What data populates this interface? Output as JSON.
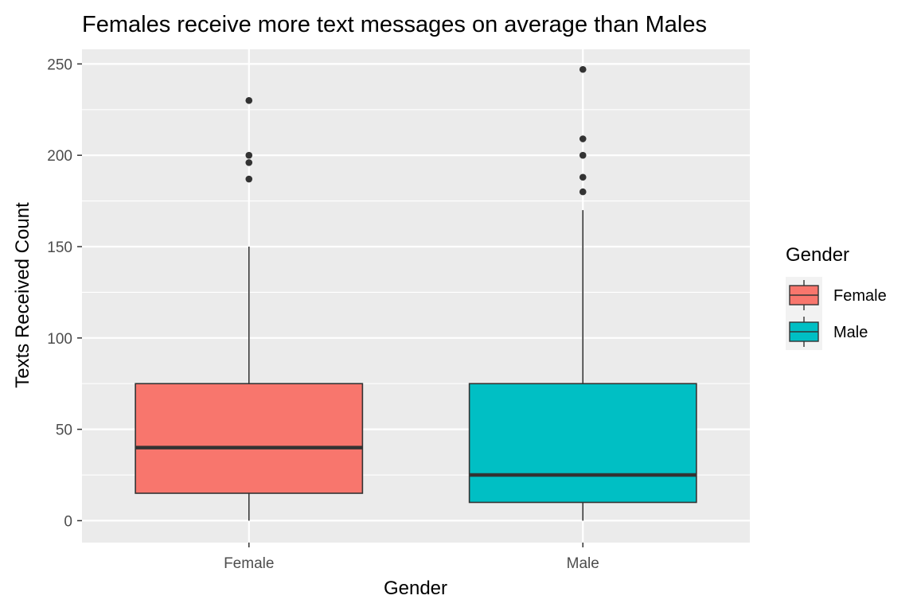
{
  "chart_data": {
    "type": "boxplot",
    "title": "Females receive more text messages on average than Males",
    "xlabel": "Gender",
    "ylabel": "Texts Received Count",
    "categories": [
      "Female",
      "Male"
    ],
    "ylim": [
      -12,
      258
    ],
    "y_ticks": [
      0,
      50,
      100,
      150,
      200,
      250
    ],
    "y_tick_labels": [
      "0",
      "50",
      "100",
      "150",
      "200",
      "250"
    ],
    "grid": true,
    "legend": {
      "title": "Gender",
      "position": "right",
      "entries": [
        "Female",
        "Male"
      ]
    },
    "colors": {
      "Female": "#f8766d",
      "Male": "#00bfc4",
      "panel_background": "#ebebeb",
      "gridline": "#ffffff",
      "outline": "#333333"
    },
    "series": [
      {
        "category": "Female",
        "min": 0,
        "q1": 15,
        "median": 40,
        "q3": 75,
        "max": 150,
        "outliers": [
          187,
          196,
          200,
          230
        ]
      },
      {
        "category": "Male",
        "min": 0,
        "q1": 10,
        "median": 25,
        "q3": 75,
        "max": 170,
        "outliers": [
          180,
          188,
          200,
          209,
          247
        ]
      }
    ]
  }
}
